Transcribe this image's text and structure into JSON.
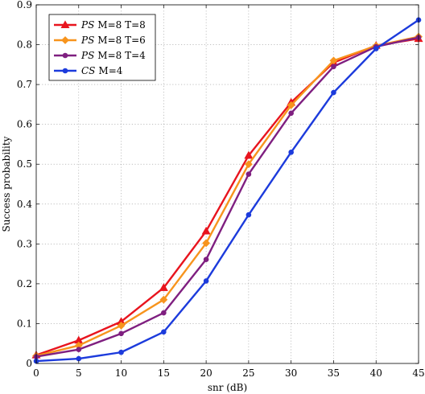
{
  "chart_data": {
    "type": "line",
    "title": "",
    "xlabel": "snr (dB)",
    "ylabel": "Success probability",
    "x": [
      0,
      5,
      10,
      15,
      20,
      25,
      30,
      35,
      40,
      45
    ],
    "xlim": [
      0,
      45
    ],
    "ylim": [
      0,
      0.9
    ],
    "xticks": [
      "0",
      "5",
      "10",
      "15",
      "20",
      "25",
      "30",
      "35",
      "40",
      "45"
    ],
    "yticks": [
      "0",
      "0.1",
      "0.2",
      "0.3",
      "0.4",
      "0.5",
      "0.6",
      "0.7",
      "0.8",
      "0.9"
    ],
    "grid": true,
    "legend_position": "top-left",
    "series": [
      {
        "name": "PS M=8 T=8",
        "name_italic": "PS",
        "name_rest": "M=8 T=8",
        "color": "#e8141e",
        "marker": "triangle",
        "values": [
          0.021,
          0.058,
          0.105,
          0.19,
          0.332,
          0.522,
          0.655,
          0.755,
          0.798,
          0.815
        ]
      },
      {
        "name": "PS M=8 T=6",
        "name_italic": "PS",
        "name_rest": "M=8 T=6",
        "color": "#f7941d",
        "marker": "diamond",
        "values": [
          0.019,
          0.045,
          0.095,
          0.16,
          0.302,
          0.5,
          0.648,
          0.76,
          0.797,
          0.82
        ]
      },
      {
        "name": "PS M=8 T=4",
        "name_italic": "PS",
        "name_rest": "M=8 T=4",
        "color": "#7f1f80",
        "marker": "circle",
        "values": [
          0.017,
          0.035,
          0.075,
          0.127,
          0.261,
          0.475,
          0.628,
          0.745,
          0.795,
          0.818
        ]
      },
      {
        "name": "CS M=4",
        "name_italic": "CS",
        "name_rest": "M=4",
        "color": "#1c3bdc",
        "marker": "circle",
        "values": [
          0.006,
          0.012,
          0.028,
          0.079,
          0.207,
          0.373,
          0.53,
          0.68,
          0.79,
          0.862
        ]
      }
    ]
  }
}
